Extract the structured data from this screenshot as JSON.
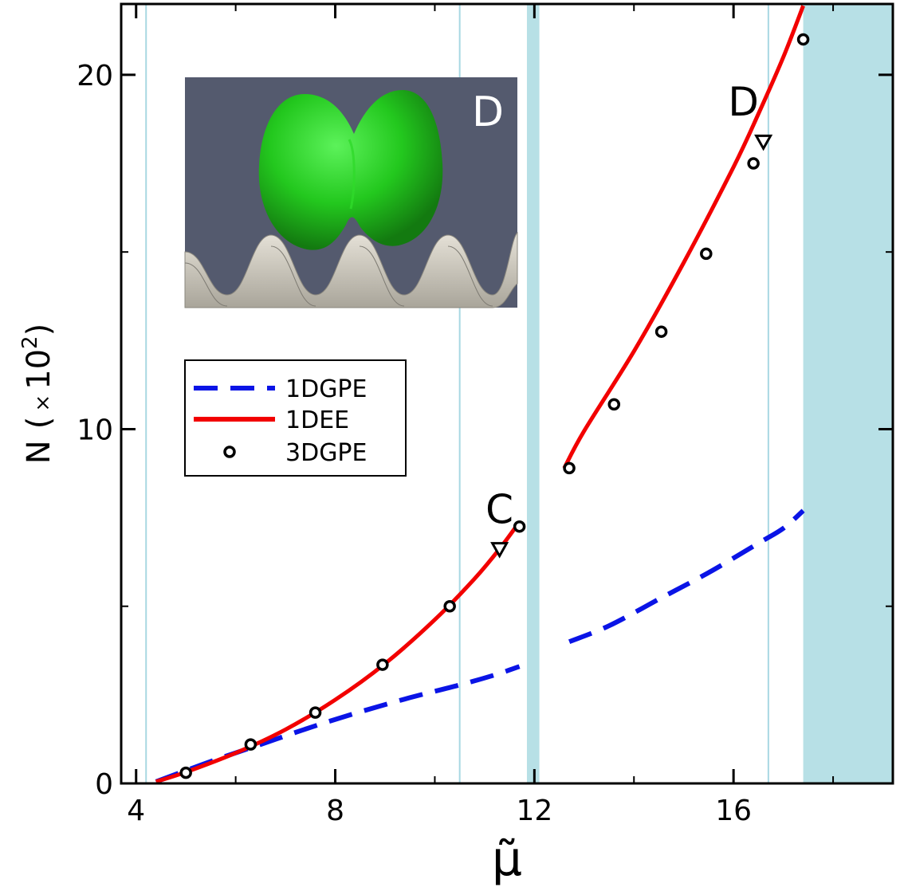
{
  "chart_data": {
    "type": "line",
    "xlabel": "μ̃",
    "ylabel": "N",
    "ylabel_unit": "(×10²)",
    "ylabel_unit_parts": {
      "open": "(",
      "times": "×",
      "base": "10",
      "exp": "2",
      "close": ")"
    },
    "xlim": [
      3.7,
      19.2
    ],
    "ylim": [
      0,
      22
    ],
    "x_ticks": [
      4,
      8,
      12,
      16
    ],
    "y_ticks": [
      0,
      10,
      20
    ],
    "x_ticks_minor": [
      6,
      10,
      14,
      18
    ],
    "y_ticks_minor": [
      5,
      15
    ],
    "grid": false,
    "legend_position": "middle-left",
    "colors": {
      "band": "#b7e0e6",
      "band_line": "#a8d8e2",
      "gpe1d": "#0a14e6",
      "ee1d": "#f20000",
      "gpe3d": "#000000",
      "inset_bg": "#545a6e",
      "blob": "#23c81e",
      "surface": "#cfcbc0"
    },
    "bands": [
      {
        "type": "line",
        "x": 4.2
      },
      {
        "type": "line",
        "x": 10.5
      },
      {
        "type": "band",
        "x0": 11.85,
        "x1": 12.1
      },
      {
        "type": "line",
        "x": 16.7
      },
      {
        "type": "band",
        "x0": 17.4,
        "x1": 19.2
      }
    ],
    "series": [
      {
        "name": "1DGPE",
        "style": "dashed",
        "segments": [
          {
            "x": [
              4.4,
              5.5,
              6.5,
              7.5,
              8.5,
              9.5,
              10.5,
              11.2,
              11.7
            ],
            "y": [
              0.05,
              0.62,
              1.1,
              1.58,
              2.02,
              2.42,
              2.78,
              3.06,
              3.3
            ]
          },
          {
            "x": [
              12.7,
              13.5,
              14.5,
              15.5,
              16.5,
              17.0,
              17.4
            ],
            "y": [
              4.0,
              4.45,
              5.2,
              5.95,
              6.78,
              7.2,
              7.7
            ]
          }
        ]
      },
      {
        "name": "1DEE",
        "style": "solid",
        "segments": [
          {
            "x": [
              4.4,
              5.0,
              6.0,
              7.0,
              8.0,
              9.0,
              10.0,
              10.8,
              11.3,
              11.7
            ],
            "y": [
              0.05,
              0.32,
              0.86,
              1.52,
              2.36,
              3.38,
              4.62,
              5.78,
              6.62,
              7.38
            ]
          },
          {
            "x": [
              12.6,
              13.0,
              14.0,
              15.0,
              16.0,
              16.5,
              17.0,
              17.4
            ],
            "y": [
              8.9,
              9.95,
              12.2,
              14.7,
              17.4,
              18.9,
              20.5,
              21.95
            ]
          }
        ]
      },
      {
        "name": "3DGPE",
        "style": "markers",
        "x": [
          5.0,
          6.3,
          7.6,
          8.95,
          10.3,
          11.7,
          12.7,
          13.6,
          14.55,
          15.45,
          16.4,
          17.4
        ],
        "y": [
          0.3,
          1.1,
          2.0,
          3.35,
          5.0,
          7.25,
          8.9,
          10.7,
          12.75,
          14.95,
          17.5,
          21.0
        ]
      }
    ],
    "triangles": [
      {
        "x": [
          11.3,
          16.6
        ],
        "y": [
          6.6,
          18.1
        ]
      }
    ],
    "annotations": [
      {
        "text": "C",
        "x": 11.3,
        "y": 7.35
      },
      {
        "text": "D",
        "x": 16.2,
        "y": 18.85
      }
    ],
    "inset": {
      "label": "D"
    }
  }
}
